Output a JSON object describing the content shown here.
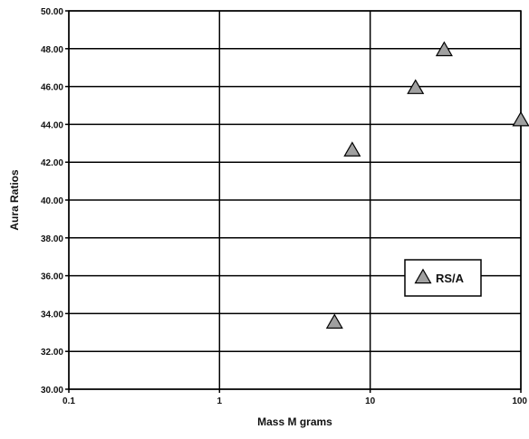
{
  "chart_data": {
    "type": "scatter",
    "xscale": "log",
    "xlim": [
      0.1,
      100
    ],
    "ylim": [
      30,
      50
    ],
    "grid": true,
    "legend_position": "lower-right",
    "xlabel": "Mass M grams",
    "ylabel": "Aura Ratios",
    "xticks": [
      0.1,
      1,
      10,
      100
    ],
    "xtick_labels": [
      "0.1",
      "1",
      "10",
      "100"
    ],
    "yticks": [
      30,
      32,
      34,
      36,
      38,
      40,
      42,
      44,
      46,
      48,
      50
    ],
    "ytick_labels": [
      "30.00",
      "32.00",
      "34.00",
      "36.00",
      "38.00",
      "40.00",
      "42.00",
      "44.00",
      "46.00",
      "48.00",
      "50.00"
    ],
    "series": [
      {
        "name": "RS/A",
        "marker": "triangle",
        "color": "#a0a0a0",
        "x": [
          5.8,
          7.6,
          20,
          31,
          100
        ],
        "y": [
          33.5,
          42.6,
          45.9,
          47.9,
          44.2
        ]
      }
    ]
  }
}
